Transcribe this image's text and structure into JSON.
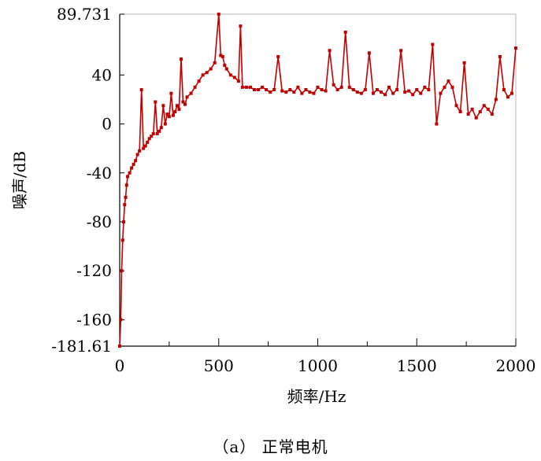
{
  "chart_data": {
    "type": "line",
    "xlabel": "频率/Hz",
    "ylabel": "噪声/dB",
    "xlim": [
      0,
      2000
    ],
    "ylim": [
      -181.61,
      89.731
    ],
    "x_ticks": [
      0,
      500,
      1000,
      1500,
      2000
    ],
    "y_ticks": [
      89.731,
      40,
      0,
      -40,
      -80,
      -120,
      -160,
      -181.61
    ],
    "y_tick_labels": [
      "89.731",
      "40",
      "0",
      "-40",
      "-80",
      "-120",
      "-160",
      "-181.61"
    ],
    "grid": false,
    "series_color": "#c00000",
    "series": [
      {
        "x": [
          0,
          5,
          10,
          15,
          20,
          25,
          30,
          35,
          40,
          50,
          60,
          70,
          80,
          90,
          100,
          110,
          120,
          130,
          140,
          150,
          160,
          170,
          180,
          190,
          200,
          210,
          220,
          230,
          240,
          250,
          260,
          270,
          280,
          290,
          300,
          310,
          320,
          330,
          340,
          360,
          380,
          400,
          420,
          440,
          460,
          480,
          500,
          510,
          520,
          530,
          540,
          560,
          580,
          600,
          610,
          620,
          640,
          660,
          680,
          700,
          720,
          740,
          760,
          780,
          800,
          820,
          840,
          860,
          880,
          900,
          920,
          940,
          960,
          980,
          1000,
          1020,
          1040,
          1060,
          1080,
          1100,
          1120,
          1140,
          1160,
          1180,
          1200,
          1220,
          1240,
          1260,
          1280,
          1300,
          1320,
          1340,
          1360,
          1380,
          1400,
          1420,
          1440,
          1460,
          1480,
          1500,
          1520,
          1540,
          1560,
          1580,
          1600,
          1620,
          1640,
          1660,
          1680,
          1700,
          1720,
          1740,
          1760,
          1780,
          1800,
          1820,
          1840,
          1860,
          1880,
          1900,
          1920,
          1940,
          1960,
          1980,
          2000
        ],
        "y": [
          -181.61,
          -160,
          -120,
          -95,
          -80,
          -66,
          -60,
          -50,
          -43,
          -40,
          -36,
          -33,
          -30,
          -25,
          -22,
          28,
          -20,
          -18,
          -15,
          -12,
          -10,
          -8,
          18,
          -8,
          -6,
          -3,
          15,
          0,
          8,
          6,
          25,
          7,
          10,
          15,
          12,
          53,
          18,
          16,
          22,
          25,
          30,
          35,
          40,
          42,
          45,
          50,
          89.731,
          56,
          55,
          48,
          45,
          40,
          38,
          35,
          80,
          30,
          30,
          30,
          28,
          28,
          30,
          28,
          26,
          28,
          55,
          27,
          26,
          28,
          26,
          30,
          25,
          28,
          26,
          25,
          30,
          28,
          27,
          60,
          32,
          28,
          30,
          75,
          30,
          28,
          26,
          25,
          28,
          58,
          25,
          28,
          26,
          24,
          30,
          25,
          28,
          60,
          26,
          27,
          24,
          28,
          25,
          30,
          28,
          65,
          0,
          25,
          30,
          35,
          30,
          15,
          10,
          50,
          8,
          12,
          5,
          10,
          15,
          12,
          8,
          20,
          55,
          28,
          22,
          25,
          62
        ]
      }
    ]
  },
  "caption": "（a）  正常电机"
}
